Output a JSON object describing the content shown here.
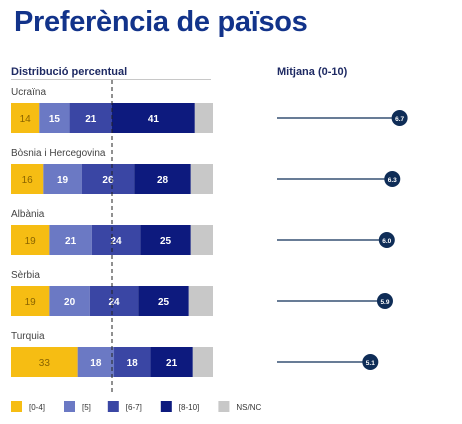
{
  "title": "Preferència de països",
  "left_header": "Distribució percentual",
  "right_header": "Mitjana (0-10)",
  "colors": {
    "title": "#12338a",
    "seg_0_4": "#f6bd13",
    "seg_5": "#6b79c4",
    "seg_6_7": "#3a46a4",
    "seg_8_10": "#0d1a7e",
    "ns_nc": "#c8c8c8",
    "marker": "#0f2d57"
  },
  "chart_data": [
    {
      "type": "stacked_bar",
      "orientation": "horizontal",
      "title": "Distribució percentual",
      "categories": [
        "Ucraïna",
        "Bòsnia i Hercegovina",
        "Albània",
        "Sèrbia",
        "Turquia"
      ],
      "series": [
        {
          "name": "[0-4]",
          "values": [
            14,
            16,
            19,
            19,
            33
          ]
        },
        {
          "name": "[5]",
          "values": [
            15,
            19,
            21,
            20,
            18
          ]
        },
        {
          "name": "[6-7]",
          "values": [
            21,
            26,
            24,
            24,
            18
          ]
        },
        {
          "name": "[8-10]",
          "values": [
            41,
            28,
            25,
            25,
            21
          ]
        },
        {
          "name": "NS/NC",
          "values": [
            9,
            11,
            11,
            12,
            10
          ]
        }
      ],
      "xlim": [
        0,
        100
      ],
      "reference_line": 50,
      "legend": "bottom",
      "grid": false
    },
    {
      "type": "dot",
      "title": "Mitjana (0-10)",
      "categories": [
        "Ucraïna",
        "Bòsnia i Hercegovina",
        "Albània",
        "Sèrbia",
        "Turquia"
      ],
      "values": [
        6.7,
        6.3,
        6.0,
        5.9,
        5.1
      ],
      "labels": [
        "6.7",
        "6.3",
        "6.0",
        "5.9",
        "5.1"
      ],
      "xlim": [
        0,
        10
      ],
      "grid": false
    }
  ]
}
